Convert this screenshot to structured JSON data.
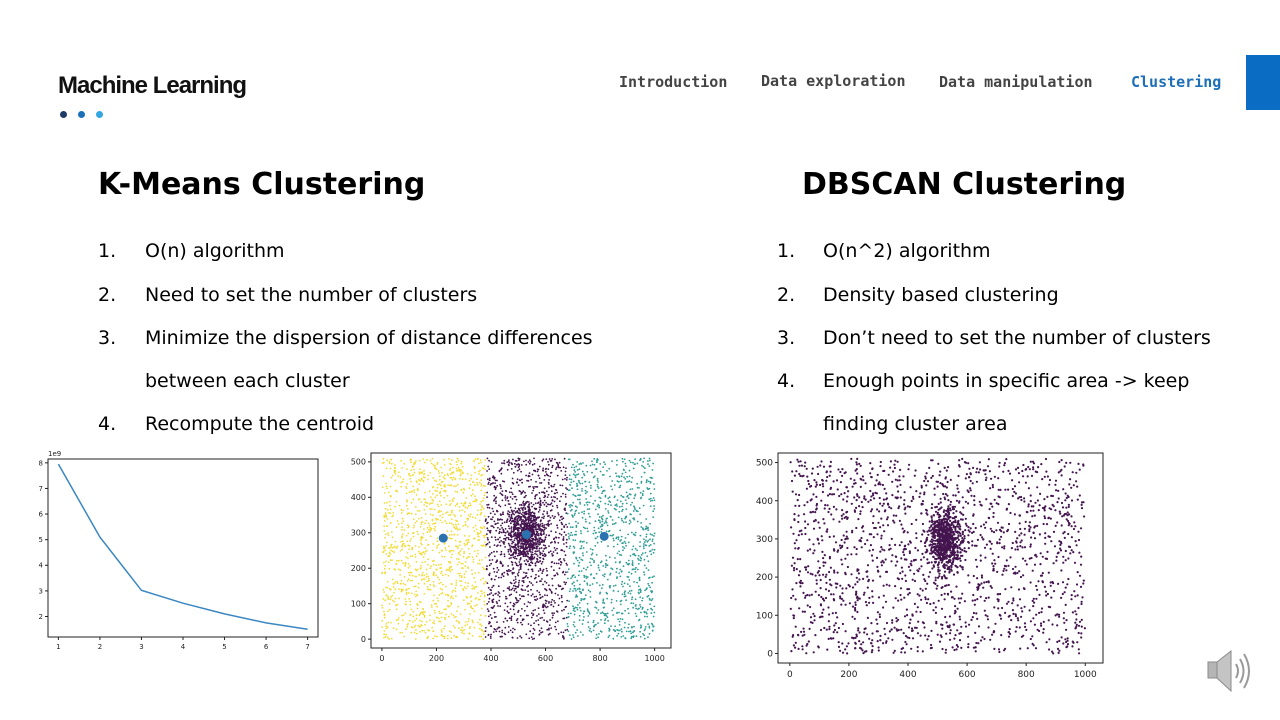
{
  "header": {
    "brand": "Machine Learning",
    "dot_colors": [
      "#1f3a66",
      "#1d6fb8",
      "#35a7e0"
    ],
    "nav": [
      {
        "label": "Introduction",
        "active": false
      },
      {
        "label": "Data exploration",
        "active": false
      },
      {
        "label": "Data manipulation",
        "active": false
      },
      {
        "label": "Clustering",
        "active": true
      }
    ]
  },
  "kmeans": {
    "title": "K-Means Clustering",
    "items": [
      {
        "num": "1.",
        "text": "O(n) algorithm"
      },
      {
        "num": "2.",
        "text": "Need to set the number of clusters"
      },
      {
        "num": "3.",
        "text": "Minimize the dispersion of distance differences",
        "cont": "between each cluster"
      },
      {
        "num": "4.",
        "text": "Recompute the centroid"
      }
    ]
  },
  "dbscan": {
    "title": "DBSCAN Clustering",
    "items": [
      {
        "num": "1.",
        "text": "O(n^2) algorithm"
      },
      {
        "num": "2.",
        "text": "Density based clustering"
      },
      {
        "num": "3.",
        "text": "Don’t need to set the number of clusters"
      },
      {
        "num": "4.",
        "text": "Enough points in specific area -> keep",
        "cont": "finding cluster area"
      }
    ]
  },
  "chart_data": [
    {
      "type": "line",
      "x": [
        1,
        2,
        3,
        4,
        5,
        6,
        7
      ],
      "y": [
        7.95,
        5.1,
        3.02,
        2.52,
        2.1,
        1.75,
        1.5
      ],
      "y_scale_label": "1e9",
      "xlim": [
        0.75,
        7.25
      ],
      "ylim": [
        1.2,
        8.15
      ],
      "xticks": [
        1,
        2,
        3,
        4,
        5,
        6,
        7
      ],
      "yticks": [
        2,
        3,
        4,
        5,
        6,
        7,
        8
      ],
      "color": "#3a87c2",
      "grid": false
    },
    {
      "type": "scatter",
      "xlim": [
        -40,
        1060
      ],
      "ylim": [
        -25,
        525
      ],
      "xticks": [
        0,
        200,
        400,
        600,
        800,
        1000
      ],
      "yticks": [
        0,
        100,
        200,
        300,
        400,
        500
      ],
      "clusters": [
        {
          "color": "#f2dc3a",
          "x_range": [
            0,
            380
          ],
          "count": 1200
        },
        {
          "color": "#44154f",
          "x_range": [
            380,
            680
          ],
          "count": 1000,
          "dense_center": [
            530,
            295
          ],
          "dense_count": 900
        },
        {
          "color": "#2f9e94",
          "x_range": [
            680,
            1000
          ],
          "count": 950
        }
      ],
      "centroids": [
        [
          225,
          285
        ],
        [
          530,
          295
        ],
        [
          815,
          290
        ]
      ],
      "centroid_color": "#2b72b0",
      "grid": false
    },
    {
      "type": "scatter",
      "xlim": [
        -40,
        1060
      ],
      "ylim": [
        -25,
        525
      ],
      "xticks": [
        0,
        200,
        400,
        600,
        800,
        1000
      ],
      "yticks": [
        0,
        100,
        200,
        300,
        400,
        500
      ],
      "color": "#44154f",
      "uniform_count": 1700,
      "dense_center": [
        525,
        295
      ],
      "dense_count": 750,
      "grid": false
    }
  ]
}
